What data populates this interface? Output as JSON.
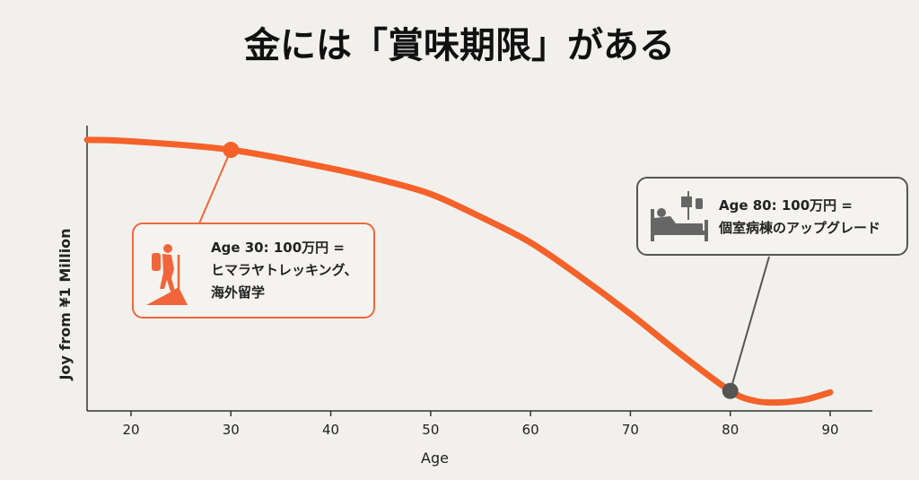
{
  "title": "金には「賞味期限」がある",
  "colors": {
    "curve": "#f4622a",
    "callout_young": "#f0663a",
    "callout_old": "#555555",
    "axis": "#333333"
  },
  "chart_data": {
    "type": "line",
    "title": "金には「賞味期限」がある",
    "xlabel": "Age",
    "ylabel": "Joy from ¥1 Million",
    "xlim": [
      15.6,
      94
    ],
    "ylim": [
      0,
      100
    ],
    "grid": false,
    "xticks": [
      20,
      30,
      40,
      50,
      60,
      70,
      80,
      90
    ],
    "series": [
      {
        "name": "Joy",
        "x": [
          15.6,
          20,
          30,
          40,
          45,
          50,
          55,
          60,
          65,
          70,
          75,
          80,
          82.5,
          85,
          87.5,
          90
        ],
        "y": [
          95,
          94.5,
          91.5,
          85,
          81,
          76,
          68,
          59,
          47,
          34,
          20,
          7,
          3.5,
          3,
          4,
          6.5
        ]
      }
    ],
    "highlights": [
      {
        "x": 30,
        "y": 91.5,
        "icon": "hiker-icon",
        "line1": "Age 30: 100万円 =",
        "line2": "ヒマラヤトレッキング、",
        "line3": "海外留学"
      },
      {
        "x": 80,
        "y": 7,
        "icon": "hospital-bed-icon",
        "line1": "Age 80: 100万円 =",
        "line2": "個室病棟のアップグレード"
      }
    ]
  }
}
